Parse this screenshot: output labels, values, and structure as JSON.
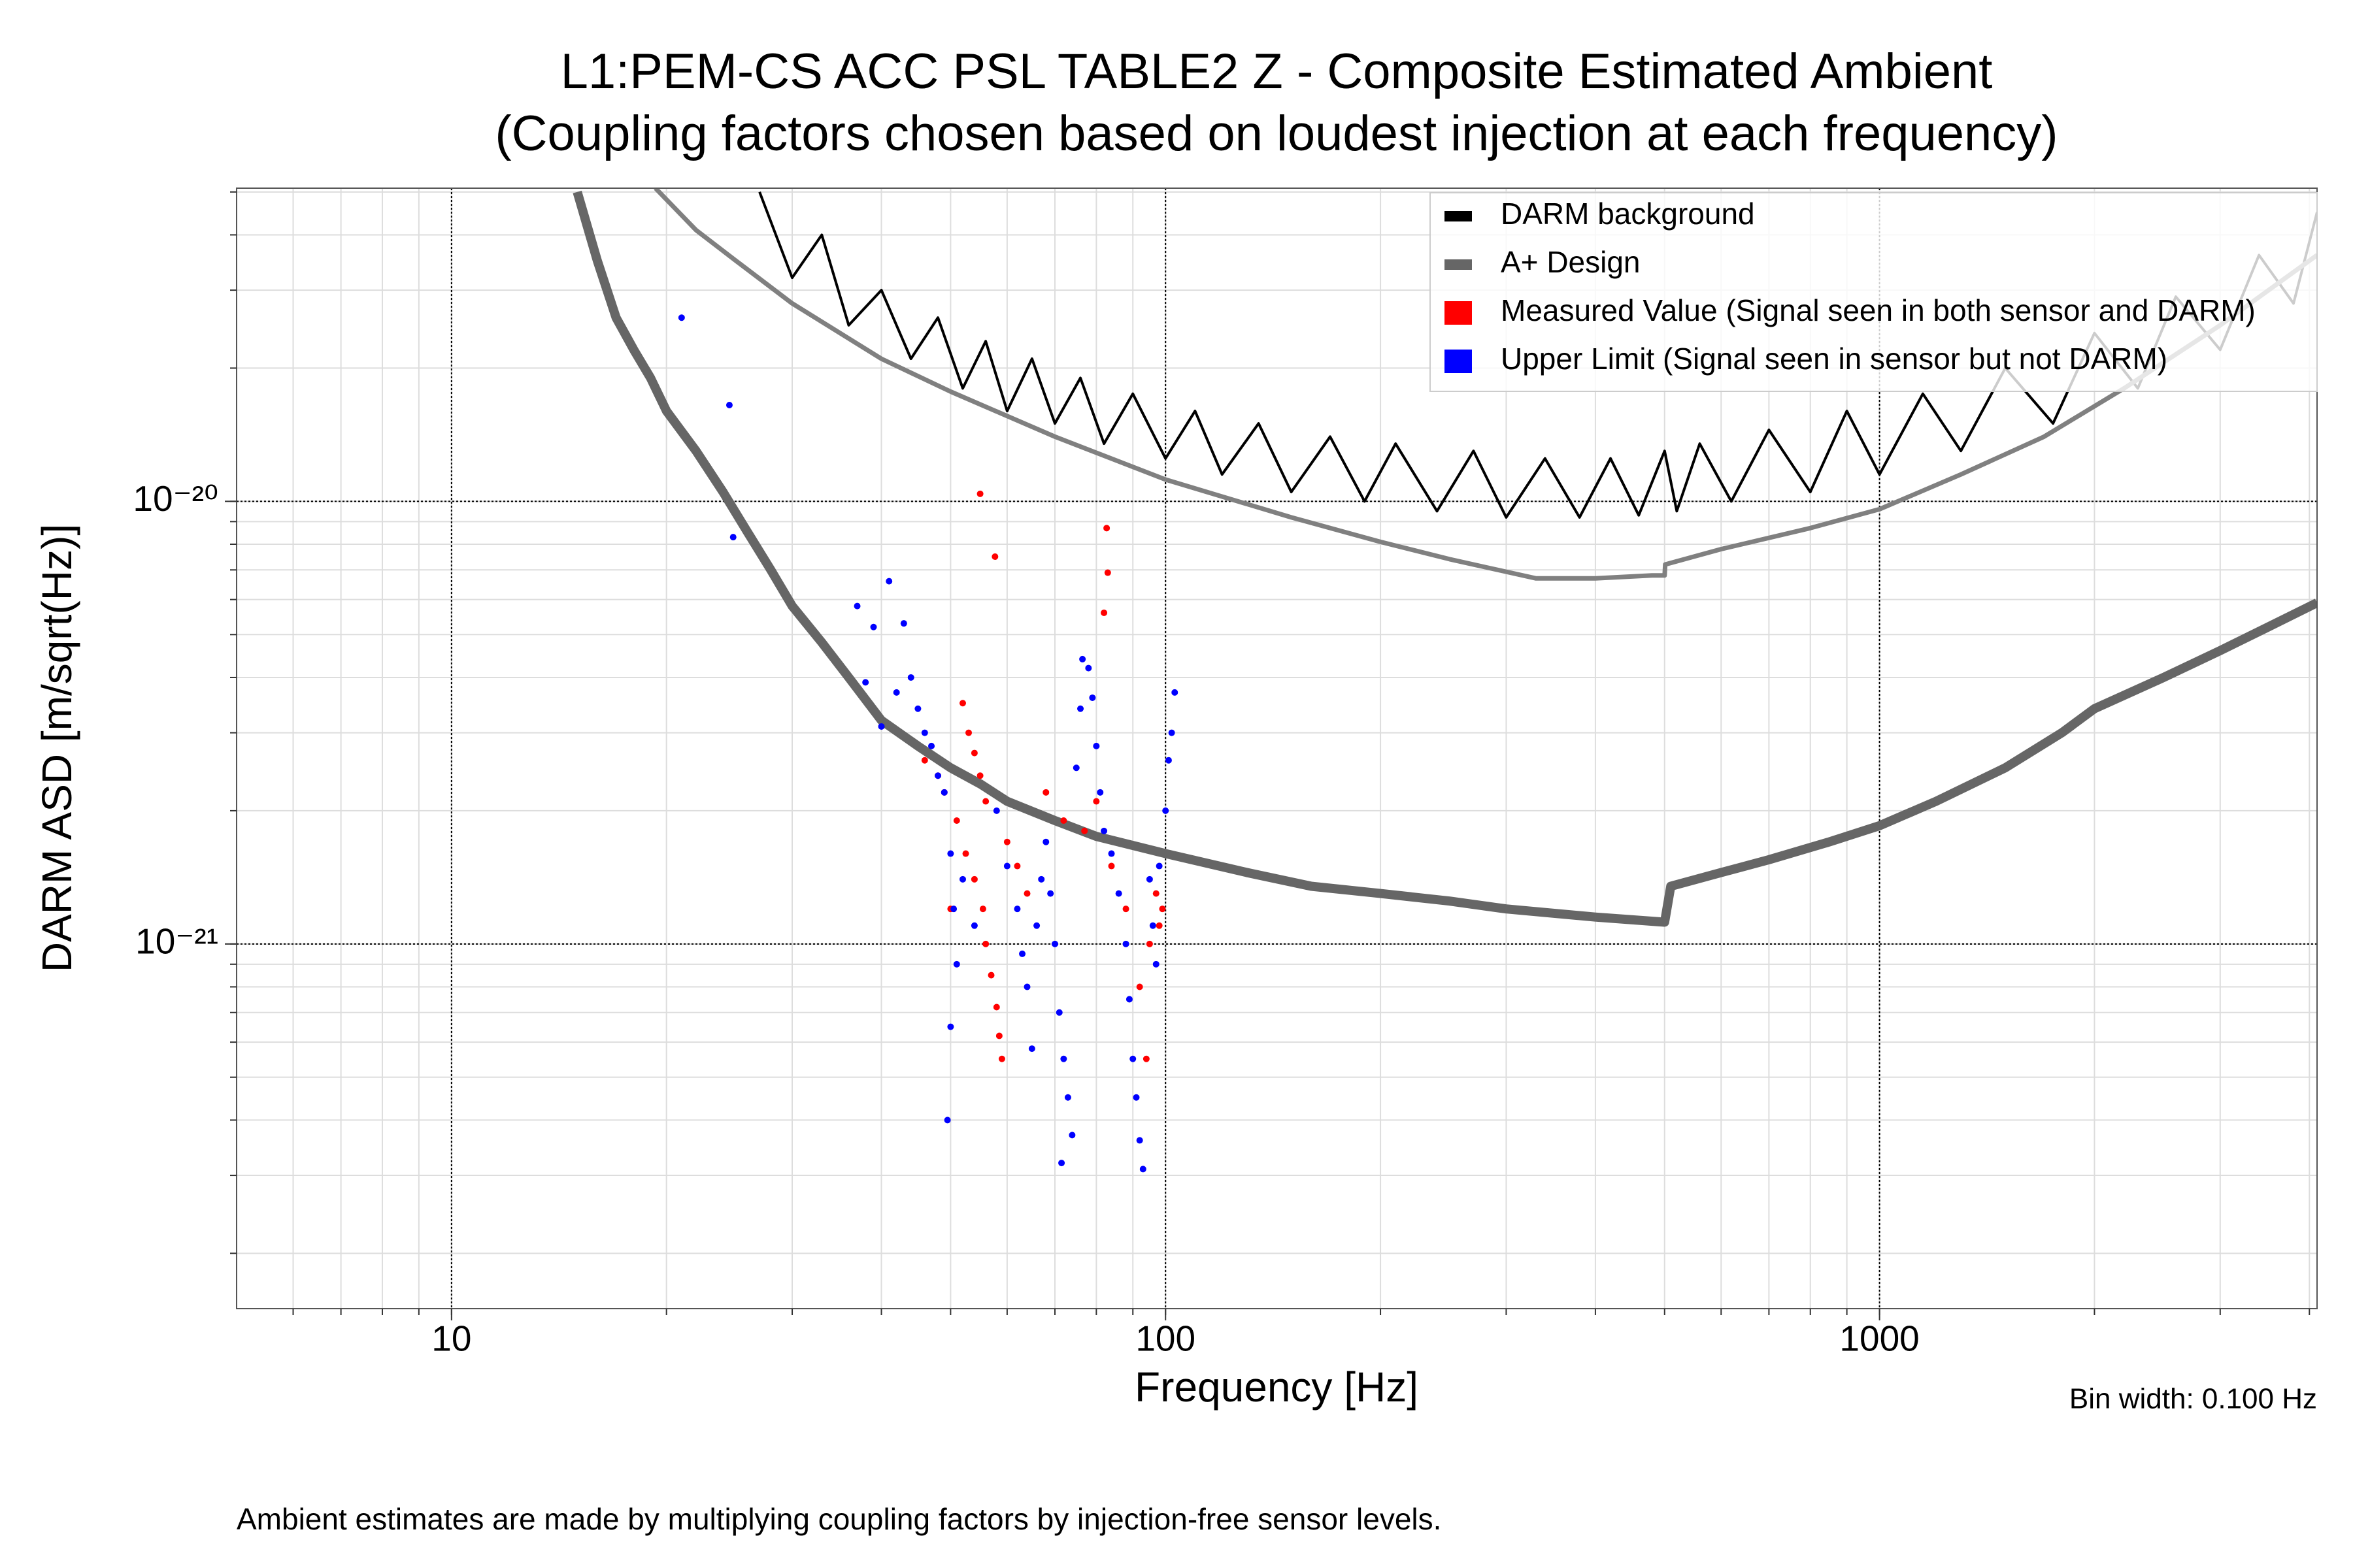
{
  "chart_data": {
    "type": "line",
    "title": "L1:PEM-CS ACC PSL TABLE2 Z - Composite Estimated Ambient",
    "subtitle": "(Coupling factors chosen based on loudest injection at each frequency)",
    "x_label": "Frequency [Hz]",
    "y_label": "DARM ASD [m/sqrt(Hz)]",
    "annotation": "Bin width: 0.100 Hz",
    "footnote": "Ambient estimates are made by multiplying coupling factors by injection-free sensor levels.",
    "xscale": "log",
    "yscale": "log",
    "grid": true,
    "legend": "upper right",
    "xlim": [
      5,
      4100
    ],
    "ylim": [
      1.5e-22,
      5.1e-20
    ],
    "xticks": [
      10,
      100,
      1000
    ],
    "yticks": [
      {
        "value": 1e-21,
        "label": "10⁻²¹"
      },
      {
        "value": 1e-20,
        "label": "10⁻²⁰"
      }
    ],
    "series": [
      {
        "name": "DARM background",
        "type": "line",
        "color": "#000000",
        "x": [
          27,
          30,
          33,
          36,
          40,
          44,
          48,
          52,
          56,
          60,
          65,
          70,
          76,
          82,
          90,
          100,
          110,
          120,
          135,
          150,
          170,
          190,
          210,
          240,
          270,
          300,
          340,
          380,
          420,
          460,
          500,
          520,
          560,
          620,
          700,
          800,
          900,
          1000,
          1150,
          1300,
          1500,
          1750,
          2000,
          2300,
          2600,
          3000,
          3400,
          3800,
          4100
        ],
        "values": [
          5e-20,
          3.2e-20,
          4e-20,
          2.5e-20,
          3e-20,
          2.1e-20,
          2.6e-20,
          1.8e-20,
          2.3e-20,
          1.6e-20,
          2.1e-20,
          1.5e-20,
          1.9e-20,
          1.35e-20,
          1.75e-20,
          1.25e-20,
          1.6e-20,
          1.15e-20,
          1.5e-20,
          1.05e-20,
          1.4e-20,
          1e-20,
          1.35e-20,
          9.5e-21,
          1.3e-20,
          9.2e-21,
          1.25e-20,
          9.2e-21,
          1.25e-20,
          9.3e-21,
          1.3e-20,
          9.5e-21,
          1.35e-20,
          1e-20,
          1.45e-20,
          1.05e-20,
          1.6e-20,
          1.15e-20,
          1.75e-20,
          1.3e-20,
          2e-20,
          1.5e-20,
          2.4e-20,
          1.8e-20,
          2.9e-20,
          2.2e-20,
          3.6e-20,
          2.8e-20,
          4.5e-20
        ]
      },
      {
        "type": "line",
        "color": "#808080",
        "x": [
          19.3,
          22,
          25,
          30,
          40,
          50,
          70,
          100,
          150,
          200,
          250,
          330,
          400,
          480,
          500,
          501,
          600,
          800,
          1000,
          1300,
          1700,
          2200,
          3000,
          4100
        ],
        "values": [
          5.1e-20,
          4.1e-20,
          3.5e-20,
          2.8e-20,
          2.1e-20,
          1.77e-20,
          1.4e-20,
          1.12e-20,
          9.2e-21,
          8.1e-21,
          7.4e-21,
          6.7e-21,
          6.7e-21,
          6.8e-21,
          6.8e-21,
          7.2e-21,
          7.8e-21,
          8.7e-21,
          9.6e-21,
          1.15e-20,
          1.4e-20,
          1.8e-20,
          2.5e-20,
          3.6e-20
        ]
      },
      {
        "name": "A+ Design",
        "type": "line",
        "color": "#666666",
        "x": [
          15,
          16,
          17,
          18,
          19,
          20,
          22,
          24,
          26,
          28,
          30,
          33,
          36,
          40,
          45,
          50,
          55,
          60,
          70,
          80,
          100,
          130,
          160,
          200,
          250,
          300,
          400,
          500,
          510,
          600,
          700,
          850,
          1000,
          1200,
          1500,
          1800,
          2000,
          2500,
          3000,
          3500,
          4100
        ],
        "values": [
          5e-20,
          3.5e-20,
          2.6e-20,
          2.2e-20,
          1.9e-20,
          1.6e-20,
          1.3e-20,
          1.05e-20,
          8.5e-21,
          7e-21,
          5.8e-21,
          4.8e-21,
          4e-21,
          3.2e-21,
          2.8e-21,
          2.5e-21,
          2.3e-21,
          2.1e-21,
          1.9e-21,
          1.75e-21,
          1.6e-21,
          1.45e-21,
          1.35e-21,
          1.3e-21,
          1.25e-21,
          1.2e-21,
          1.15e-21,
          1.12e-21,
          1.35e-21,
          1.45e-21,
          1.55e-21,
          1.7e-21,
          1.85e-21,
          2.1e-21,
          2.5e-21,
          3e-21,
          3.4e-21,
          4e-21,
          4.6e-21,
          5.2e-21,
          5.9e-21
        ]
      },
      {
        "name": "Measured Value (Signal seen in both sensor and DARM)",
        "type": "scatter",
        "color": "#ff0000",
        "x": [
          55,
          57.7,
          82.7,
          83,
          82,
          52,
          53,
          54,
          55,
          56,
          51,
          52.5,
          54,
          55.5,
          56,
          57,
          58,
          58.5,
          59,
          46,
          48,
          60,
          62,
          64,
          68,
          72,
          77,
          80,
          84,
          88,
          92,
          95,
          97,
          98,
          99,
          94,
          50,
          49
        ],
        "values": [
          1.04e-20,
          7.5e-21,
          8.7e-21,
          6.9e-21,
          5.6e-21,
          3.5e-21,
          3e-21,
          2.7e-21,
          2.4e-21,
          2.1e-21,
          1.9e-21,
          1.6e-21,
          1.4e-21,
          1.2e-21,
          1e-21,
          8.5e-22,
          7.2e-22,
          6.2e-22,
          5.5e-22,
          2.6e-21,
          2.4e-21,
          1.7e-21,
          1.5e-21,
          1.3e-21,
          2.2e-21,
          1.9e-21,
          1.8e-21,
          2.1e-21,
          1.5e-21,
          1.2e-21,
          8e-22,
          1e-21,
          1.3e-21,
          1.1e-21,
          1.2e-21,
          5.5e-22,
          1.2e-21,
          2.2e-21
        ]
      },
      {
        "name": "Upper Limit (Signal seen in sensor but not DARM)",
        "type": "scatter",
        "color": "#0000ff",
        "x": [
          21,
          24.5,
          24.8,
          37,
          39,
          41,
          43,
          38,
          40,
          42,
          44,
          45,
          46,
          47,
          48,
          49,
          50,
          50.5,
          51,
          50,
          49.5,
          52,
          54,
          58,
          60,
          62,
          63,
          64,
          65,
          66,
          67,
          68,
          69,
          70,
          71,
          72,
          73,
          74,
          71.5,
          75,
          76,
          78,
          79,
          80,
          81,
          82,
          84,
          86,
          88,
          89,
          90,
          91,
          92,
          93,
          95,
          96,
          97,
          98,
          100,
          101,
          102,
          103,
          76.5
        ],
        "values": [
          2.6e-20,
          1.65e-20,
          8.3e-21,
          5.8e-21,
          5.2e-21,
          6.6e-21,
          5.3e-21,
          3.9e-21,
          3.1e-21,
          3.7e-21,
          4e-21,
          3.4e-21,
          3e-21,
          2.8e-21,
          2.4e-21,
          2.2e-21,
          1.6e-21,
          1.2e-21,
          9e-22,
          6.5e-22,
          4e-22,
          1.4e-21,
          1.1e-21,
          2e-21,
          1.5e-21,
          1.2e-21,
          9.5e-22,
          8e-22,
          5.8e-22,
          1.1e-21,
          1.4e-21,
          1.7e-21,
          1.3e-21,
          1e-21,
          7e-22,
          5.5e-22,
          4.5e-22,
          3.7e-22,
          3.2e-22,
          2.5e-21,
          3.4e-21,
          4.2e-21,
          3.6e-21,
          2.8e-21,
          2.2e-21,
          1.8e-21,
          1.6e-21,
          1.3e-21,
          1e-21,
          7.5e-22,
          5.5e-22,
          4.5e-22,
          3.6e-22,
          3.1e-22,
          1.4e-21,
          1.1e-21,
          9e-22,
          1.5e-21,
          2e-21,
          2.6e-21,
          3e-21,
          3.7e-21,
          4.4e-21
        ]
      }
    ]
  }
}
